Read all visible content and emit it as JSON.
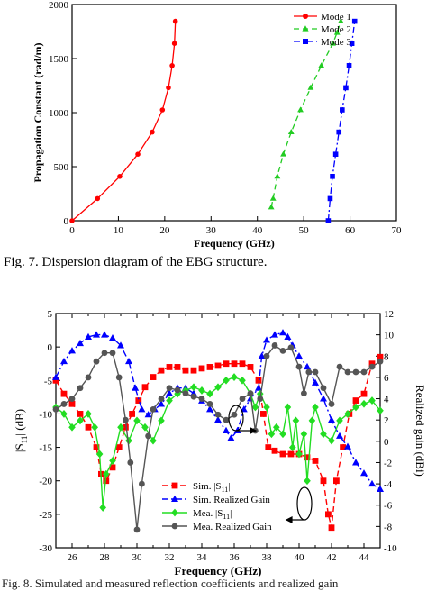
{
  "captions": {
    "fig7": "Fig. 7. Dispersion diagram of the EBG structure.",
    "fig8": "Fig. 8. Simulated and measured reflection coefficients and realized gain"
  },
  "chart_data": [
    {
      "type": "line",
      "title": "",
      "xlabel": "Frequency (GHz)",
      "ylabel": "Propagation Constant (rad/m)",
      "xlim": [
        0,
        70
      ],
      "ylim": [
        0,
        2000
      ],
      "xticks": [
        "0",
        "10",
        "20",
        "30",
        "40",
        "50",
        "60",
        "70"
      ],
      "yticks": [
        "0",
        "500",
        "1000",
        "1500",
        "2000"
      ],
      "legend_position": "top-right",
      "grid": false,
      "series": [
        {
          "name": "Mode 1",
          "color": "#ff0000",
          "marker": "circle",
          "dash": "solid",
          "points": [
            [
              0,
              0
            ],
            [
              5.5,
              205
            ],
            [
              10.3,
              410
            ],
            [
              14.2,
              615
            ],
            [
              17.3,
              820
            ],
            [
              19.5,
              1025
            ],
            [
              20.8,
              1230
            ],
            [
              21.6,
              1435
            ],
            [
              22.1,
              1640
            ],
            [
              22.3,
              1845
            ]
          ]
        },
        {
          "name": "Mode 2",
          "color": "#22cc22",
          "marker": "triangle",
          "dash": "dashed",
          "points": [
            [
              43.0,
              125
            ],
            [
              43.4,
              205
            ],
            [
              44.3,
              410
            ],
            [
              45.6,
              615
            ],
            [
              47.3,
              820
            ],
            [
              49.3,
              1025
            ],
            [
              51.5,
              1230
            ],
            [
              53.8,
              1435
            ],
            [
              56.3,
              1640
            ],
            [
              57.2,
              1740
            ],
            [
              58.0,
              1845
            ]
          ]
        },
        {
          "name": "Mode 3",
          "color": "#0000ff",
          "marker": "square",
          "dash": "dashdot",
          "points": [
            [
              55.3,
              0
            ],
            [
              55.7,
              205
            ],
            [
              56.2,
              410
            ],
            [
              56.9,
              615
            ],
            [
              57.6,
              820
            ],
            [
              58.3,
              1025
            ],
            [
              59.1,
              1230
            ],
            [
              59.8,
              1435
            ],
            [
              60.4,
              1640
            ],
            [
              61.0,
              1845
            ]
          ]
        }
      ]
    },
    {
      "type": "line",
      "title": "",
      "xlabel": "Frequency (GHz)",
      "ylabel_left": "|S",
      "ylabel_left_sub": "11",
      "ylabel_left_end": "| (dB)",
      "ylabel_right": "Realized gain (dBi)",
      "xlim": [
        25,
        45
      ],
      "ylim_left": [
        -30,
        5
      ],
      "ylim_right": [
        -10,
        12
      ],
      "xticks": [
        "26",
        "28",
        "30",
        "32",
        "34",
        "36",
        "38",
        "40",
        "42",
        "44"
      ],
      "yticks_left": [
        "5",
        "0",
        "-5",
        "-10",
        "-15",
        "-20",
        "-25",
        "-30"
      ],
      "yticks_right": [
        "12",
        "10",
        "8",
        "6",
        "4",
        "2",
        "0",
        "-2",
        "-4",
        "-6",
        "-8",
        "-10"
      ],
      "legend_position": "bottom-center",
      "grid": false,
      "series": [
        {
          "name": "Sim. |S11|",
          "name_main": "Sim. |S",
          "name_sub": "11",
          "name_end": "|",
          "axis": "left",
          "color": "#ff0000",
          "marker": "square",
          "dash": "dashed",
          "points": [
            [
              25,
              -5
            ],
            [
              25.5,
              -7
            ],
            [
              26,
              -8.5
            ],
            [
              26.5,
              -10
            ],
            [
              27,
              -12
            ],
            [
              27.5,
              -15
            ],
            [
              27.8,
              -19
            ],
            [
              28.1,
              -20
            ],
            [
              28.5,
              -18
            ],
            [
              28.9,
              -15
            ],
            [
              29.3,
              -12
            ],
            [
              29.7,
              -10
            ],
            [
              30.1,
              -8
            ],
            [
              30.5,
              -6
            ],
            [
              31,
              -4.5
            ],
            [
              31.5,
              -3.5
            ],
            [
              32,
              -3
            ],
            [
              32.5,
              -3
            ],
            [
              33,
              -3.5
            ],
            [
              33.5,
              -3.5
            ],
            [
              34,
              -3.2
            ],
            [
              34.5,
              -3
            ],
            [
              35,
              -2.8
            ],
            [
              35.5,
              -2.5
            ],
            [
              36,
              -2.5
            ],
            [
              36.5,
              -2.5
            ],
            [
              37,
              -3
            ],
            [
              37.5,
              -5
            ],
            [
              37.8,
              -10
            ],
            [
              38.1,
              -15
            ],
            [
              38.5,
              -15.5
            ],
            [
              39,
              -16
            ],
            [
              39.5,
              -16
            ],
            [
              40,
              -16
            ],
            [
              40.5,
              -16.5
            ],
            [
              41,
              -17
            ],
            [
              41.5,
              -20
            ],
            [
              41.8,
              -25
            ],
            [
              42,
              -27
            ],
            [
              42.3,
              -20
            ],
            [
              42.7,
              -15
            ],
            [
              43.1,
              -10
            ],
            [
              43.5,
              -8
            ],
            [
              44,
              -7
            ],
            [
              44.5,
              -2.5
            ],
            [
              45,
              -1.5
            ]
          ]
        },
        {
          "name": "Sim. Realized Gain",
          "axis": "right",
          "color": "#0000ff",
          "marker": "triangle",
          "dash": "dashdot",
          "points": [
            [
              25,
              6
            ],
            [
              25.5,
              7.5
            ],
            [
              26,
              8.5
            ],
            [
              26.5,
              9.2
            ],
            [
              27,
              9.8
            ],
            [
              27.5,
              10
            ],
            [
              28,
              10
            ],
            [
              28.5,
              9.7
            ],
            [
              29,
              9
            ],
            [
              29.5,
              7.5
            ],
            [
              29.9,
              5
            ],
            [
              30.3,
              3
            ],
            [
              30.7,
              2.5
            ],
            [
              31.1,
              3
            ],
            [
              31.5,
              3.5
            ],
            [
              32,
              4.5
            ],
            [
              32.5,
              5
            ],
            [
              33,
              5
            ],
            [
              33.5,
              4.5
            ],
            [
              34,
              3.8
            ],
            [
              34.5,
              3
            ],
            [
              35,
              2
            ],
            [
              35.5,
              1
            ],
            [
              35.8,
              0.3
            ],
            [
              36.2,
              1
            ],
            [
              36.6,
              3
            ],
            [
              37,
              4
            ],
            [
              37.5,
              5
            ],
            [
              37.7,
              8
            ],
            [
              38,
              9.5
            ],
            [
              38.5,
              10
            ],
            [
              39,
              10.2
            ],
            [
              39.3,
              9.8
            ],
            [
              39.6,
              9
            ],
            [
              40,
              8
            ],
            [
              40.5,
              7
            ],
            [
              41,
              5.5
            ],
            [
              41.5,
              4
            ],
            [
              42,
              2
            ],
            [
              42.5,
              0.5
            ],
            [
              43,
              -0.5
            ],
            [
              43.5,
              -2
            ],
            [
              44,
              -3
            ],
            [
              44.5,
              -4
            ],
            [
              45,
              -4.5
            ]
          ]
        },
        {
          "name": "Mea. |S11|",
          "name_main": "Mea. |S",
          "name_sub": "11",
          "name_end": "|",
          "axis": "left",
          "color": "#22dd22",
          "marker": "diamond",
          "dash": "solid",
          "points": [
            [
              25,
              -9
            ],
            [
              25.5,
              -10
            ],
            [
              26,
              -12
            ],
            [
              26.5,
              -11
            ],
            [
              27,
              -10
            ],
            [
              27.4,
              -12
            ],
            [
              27.7,
              -16
            ],
            [
              27.9,
              -24
            ],
            [
              28.1,
              -19
            ],
            [
              28.5,
              -17
            ],
            [
              29,
              -12
            ],
            [
              29.5,
              -14
            ],
            [
              30,
              -11
            ],
            [
              30.5,
              -12
            ],
            [
              31,
              -14
            ],
            [
              31.5,
              -11
            ],
            [
              32,
              -8
            ],
            [
              32.5,
              -7
            ],
            [
              33,
              -6.5
            ],
            [
              33.5,
              -6
            ],
            [
              34,
              -6.5
            ],
            [
              34.5,
              -7
            ],
            [
              35,
              -6
            ],
            [
              35.5,
              -5
            ],
            [
              36,
              -4.5
            ],
            [
              36.5,
              -5
            ],
            [
              37,
              -7
            ],
            [
              37.3,
              -9
            ],
            [
              37.6,
              -7
            ],
            [
              38,
              -9
            ],
            [
              38.3,
              -13
            ],
            [
              38.6,
              -12
            ],
            [
              39,
              -13
            ],
            [
              39.3,
              -9
            ],
            [
              39.6,
              -15
            ],
            [
              39.8,
              -11
            ],
            [
              40,
              -16
            ],
            [
              40.3,
              -13
            ],
            [
              40.5,
              -20
            ],
            [
              40.8,
              -11
            ],
            [
              41,
              -9
            ],
            [
              41.5,
              -13
            ],
            [
              42,
              -14
            ],
            [
              42.5,
              -11
            ],
            [
              43,
              -10
            ],
            [
              43.5,
              -9
            ],
            [
              44,
              -8.5
            ],
            [
              44.5,
              -8
            ],
            [
              45,
              -9.5
            ]
          ]
        },
        {
          "name": "Mea. Realized Gain",
          "axis": "right",
          "color": "#555555",
          "marker": "circle",
          "dash": "solid",
          "points": [
            [
              25,
              3
            ],
            [
              25.5,
              3.5
            ],
            [
              26,
              4
            ],
            [
              26.5,
              5
            ],
            [
              27,
              6
            ],
            [
              27.5,
              7.5
            ],
            [
              28,
              8.3
            ],
            [
              28.5,
              8.3
            ],
            [
              28.9,
              6
            ],
            [
              29.3,
              2
            ],
            [
              29.6,
              -2
            ],
            [
              30,
              -8.3
            ],
            [
              30.3,
              -4
            ],
            [
              30.7,
              0.5
            ],
            [
              31,
              3
            ],
            [
              31.5,
              4
            ],
            [
              32,
              5
            ],
            [
              32.5,
              4.8
            ],
            [
              33,
              4.5
            ],
            [
              33.5,
              4.2
            ],
            [
              34,
              4
            ],
            [
              34.5,
              3.5
            ],
            [
              35,
              2.5
            ],
            [
              35.5,
              2
            ],
            [
              36,
              2.5
            ],
            [
              36.5,
              4
            ],
            [
              37,
              4.5
            ],
            [
              37.3,
              1
            ],
            [
              37.6,
              4
            ],
            [
              38,
              8
            ],
            [
              38.5,
              9
            ],
            [
              39,
              8.5
            ],
            [
              39.5,
              8.8
            ],
            [
              40,
              7
            ],
            [
              40.3,
              4.5
            ],
            [
              40.6,
              6.5
            ],
            [
              41,
              6.5
            ],
            [
              41.5,
              5
            ],
            [
              42,
              3.5
            ],
            [
              42.5,
              7
            ],
            [
              43,
              6.5
            ],
            [
              43.5,
              6.5
            ],
            [
              44,
              6.5
            ],
            [
              44.5,
              7
            ],
            [
              45,
              7.5
            ]
          ]
        }
      ]
    }
  ]
}
